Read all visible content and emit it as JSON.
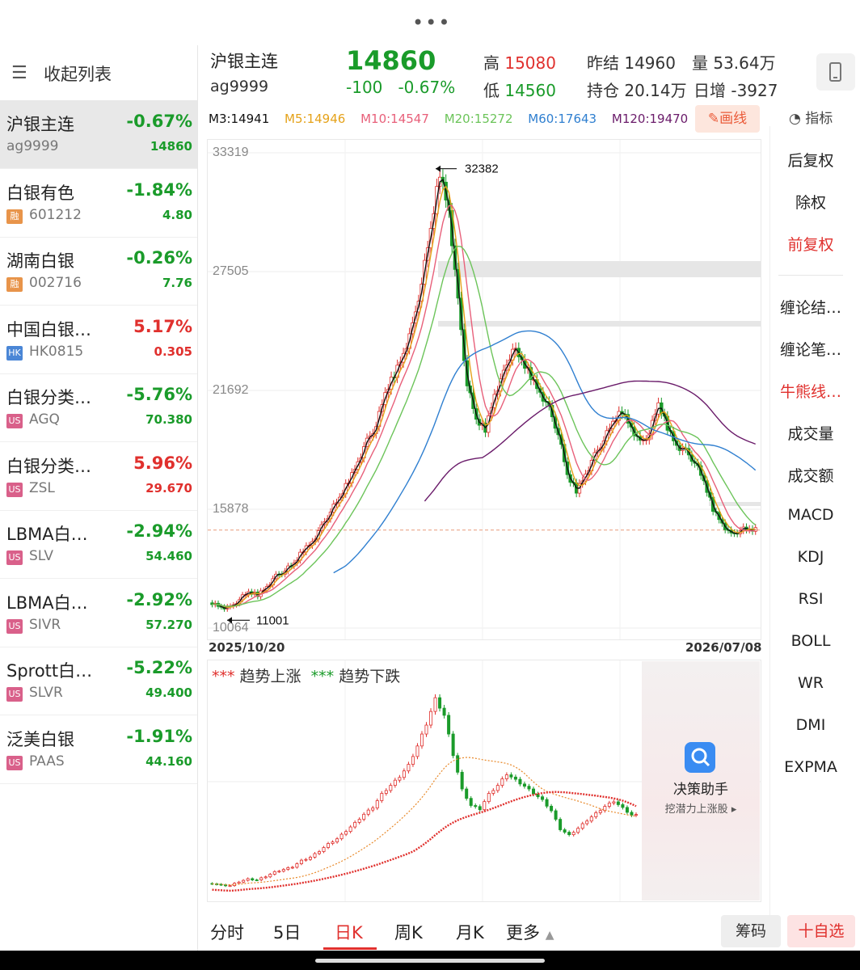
{
  "sidebar": {
    "collapse_label": "收起列表",
    "items": [
      {
        "name": "沪银主连",
        "code": "ag9999",
        "badge": "",
        "pct": "-0.67%",
        "price": "14860",
        "dir": "dn",
        "selected": true
      },
      {
        "name": "白银有色",
        "code": "601212",
        "badge": "融",
        "pct": "-1.84%",
        "price": "4.80",
        "dir": "dn"
      },
      {
        "name": "湖南白银",
        "code": "002716",
        "badge": "融",
        "pct": "-0.26%",
        "price": "7.76",
        "dir": "dn"
      },
      {
        "name": "中国白银…",
        "code": "HK0815",
        "badge": "HK",
        "pct": "5.17%",
        "price": "0.305",
        "dir": "up"
      },
      {
        "name": "白银分类…",
        "code": "AGQ",
        "badge": "US",
        "pct": "-5.76%",
        "price": "70.380",
        "dir": "dn"
      },
      {
        "name": "白银分类…",
        "code": "ZSL",
        "badge": "US",
        "pct": "5.96%",
        "price": "29.670",
        "dir": "up"
      },
      {
        "name": "LBMA白…",
        "code": "SLV",
        "badge": "US",
        "pct": "-2.94%",
        "price": "54.460",
        "dir": "dn"
      },
      {
        "name": "LBMA白…",
        "code": "SIVR",
        "badge": "US",
        "pct": "-2.92%",
        "price": "57.270",
        "dir": "dn"
      },
      {
        "name": "Sprott白…",
        "code": "SLVR",
        "badge": "US",
        "pct": "-5.22%",
        "price": "49.400",
        "dir": "dn"
      },
      {
        "name": "泛美白银",
        "code": "PAAS",
        "badge": "US",
        "pct": "-1.91%",
        "price": "44.160",
        "dir": "dn"
      }
    ]
  },
  "header": {
    "name": "沪银主连",
    "code": "ag9999",
    "price": "14860",
    "change": "-100",
    "change_pct": "-0.67%",
    "high_label": "高",
    "high": "15080",
    "low_label": "低",
    "low": "14560",
    "prev_settle_label": "昨结",
    "prev_settle": "14960",
    "volume_label": "量",
    "volume": "53.64万",
    "open_interest_label": "持仓",
    "open_interest": "20.14万",
    "daily_increase_label": "日增",
    "daily_increase": "-3927"
  },
  "ma_bar": {
    "m3": "M3:14941",
    "m5": "M5:14946",
    "m10": "M10:14547",
    "m20": "M20:15272",
    "m60": "M60:17643",
    "m120": "M120:19470",
    "draw_label": "画线",
    "indicator_label": "指标"
  },
  "colors": {
    "up": "#e0302d",
    "down": "#1a9b2a",
    "m3": "#111111",
    "m5": "#e5a21a",
    "m10": "#e8607a",
    "m20": "#6cc45a",
    "m60": "#2f7fd0",
    "m120": "#6a1b6a"
  },
  "right_menu": {
    "items": [
      "后复权",
      "除权",
      "前复权",
      "缠论结…",
      "缠论笔…",
      "牛熊线…",
      "成交量",
      "成交额",
      "MACD",
      "KDJ",
      "RSI",
      "BOLL",
      "WR",
      "DMI",
      "EXPMA"
    ],
    "highlighted": [
      "前复权",
      "牛熊线…"
    ]
  },
  "chart": {
    "y_labels": [
      "33319",
      "27505",
      "21692",
      "15878",
      "10064"
    ],
    "max_annot": "32382",
    "min_annot": "11001",
    "date_start": "2025/10/20",
    "date_end": "2026/07/08",
    "sub_legend_up_stars": "***",
    "sub_legend_up": "趋势上涨",
    "sub_legend_down_stars": "***",
    "sub_legend_down": "趋势下跌",
    "assistant_title": "决策助手",
    "assistant_sub": "挖潜力上涨股"
  },
  "chart_data": {
    "type": "candlestick",
    "ylim": [
      10064,
      33319
    ],
    "x_range": [
      "2025/10/20",
      "2026/07/08"
    ],
    "close_path": [
      11300,
      11100,
      11050,
      11500,
      11800,
      11700,
      12100,
      12600,
      12900,
      13200,
      13900,
      14300,
      15000,
      15800,
      16400,
      17300,
      18200,
      19200,
      20000,
      21500,
      22500,
      23500,
      24800,
      27000,
      29500,
      32382,
      30500,
      26000,
      22000,
      20200,
      19800,
      21500,
      22500,
      23800,
      23100,
      22400,
      21600,
      20800,
      19600,
      17500,
      16800,
      17600,
      18500,
      19300,
      20100,
      20700,
      19900,
      19100,
      19600,
      21000,
      19900,
      19000,
      18700,
      18200,
      17200,
      15900,
      15200,
      14600,
      14900,
      14860
    ],
    "min_point": 11001,
    "max_point": 32382
  },
  "bottom": {
    "tabs": [
      "分时",
      "5日",
      "日K",
      "周K",
      "月K",
      "更多"
    ],
    "active_tab": "日K",
    "chip_label": "筹码",
    "add_label": "十自选"
  }
}
